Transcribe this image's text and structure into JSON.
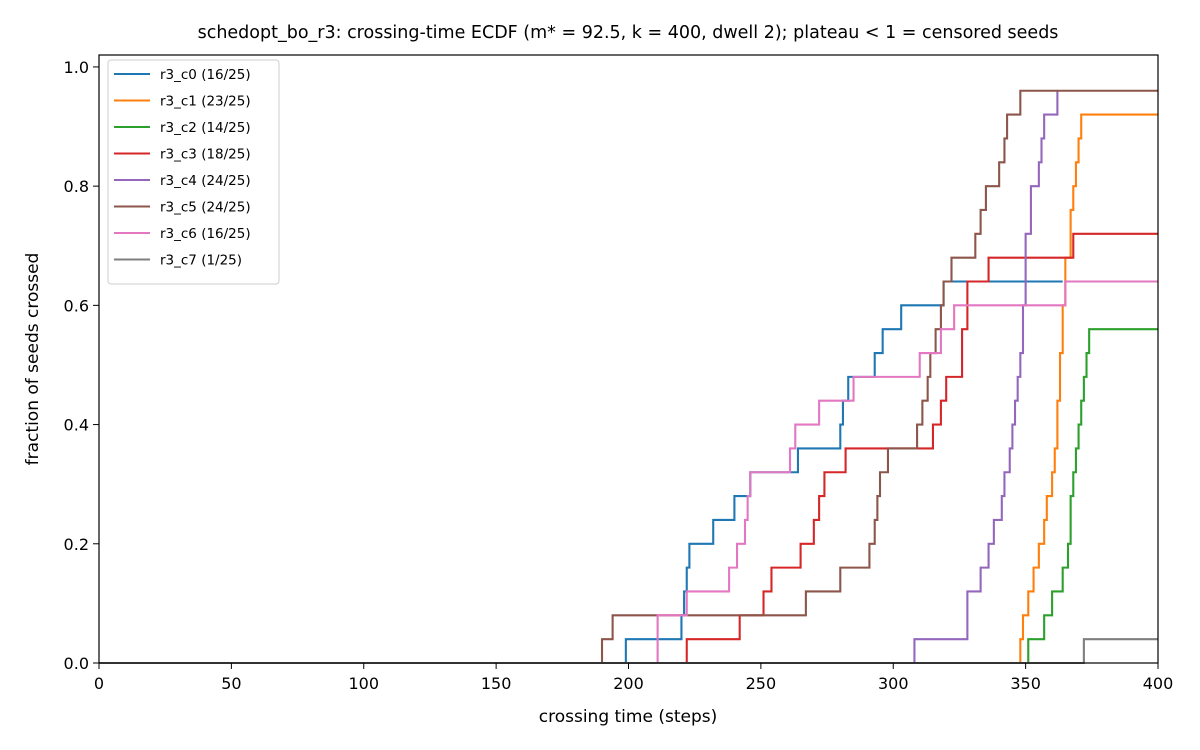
{
  "chart_data": {
    "type": "line",
    "title": "schedopt_bo_r3: crossing-time ECDF (m* = 92.5, k = 400, dwell 2); plateau < 1 = censored seeds",
    "xlabel": "crossing time (steps)",
    "ylabel": "fraction of seeds crossed",
    "xlim": [
      0,
      400
    ],
    "ylim": [
      0,
      1.02
    ],
    "xticks": [
      0,
      50,
      100,
      150,
      200,
      250,
      300,
      350,
      400
    ],
    "xtick_labels": [
      "0",
      "50",
      "100",
      "150",
      "200",
      "250",
      "300",
      "350",
      "400"
    ],
    "yticks": [
      0,
      0.2,
      0.4,
      0.6,
      0.8,
      1.0
    ],
    "ytick_labels": [
      "0.0",
      "0.2",
      "0.4",
      "0.6",
      "0.8",
      "1.0"
    ],
    "grid": false,
    "legend_position": "top-left",
    "step": "post",
    "series": [
      {
        "name": "r3_c0 (16/25)",
        "color": "#1f77b4",
        "x": [
          0,
          199,
          220,
          221,
          222,
          223,
          232,
          240,
          246,
          248,
          264,
          280,
          281,
          283,
          285,
          293,
          296,
          303,
          317,
          319,
          364
        ],
        "y": [
          0,
          0.04,
          0.08,
          0.12,
          0.16,
          0.2,
          0.24,
          0.28,
          0.32,
          0.32,
          0.36,
          0.4,
          0.44,
          0.48,
          0.48,
          0.52,
          0.56,
          0.6,
          0.6,
          0.64,
          0.64
        ]
      },
      {
        "name": "r3_c1 (23/25)",
        "color": "#ff7f0e",
        "x": [
          0,
          348,
          349,
          351,
          353,
          355,
          357,
          358,
          360,
          361,
          362,
          363,
          364,
          365,
          367,
          368,
          369,
          370,
          371,
          400
        ],
        "y": [
          0,
          0.04,
          0.08,
          0.12,
          0.16,
          0.2,
          0.24,
          0.28,
          0.32,
          0.36,
          0.44,
          0.52,
          0.6,
          0.68,
          0.76,
          0.8,
          0.84,
          0.88,
          0.92,
          0.92
        ]
      },
      {
        "name": "r3_c2 (14/25)",
        "color": "#2ca02c",
        "x": [
          0,
          351,
          357,
          360,
          364,
          366,
          367,
          368,
          369,
          370,
          371,
          372,
          373,
          374,
          400
        ],
        "y": [
          0,
          0.04,
          0.08,
          0.12,
          0.16,
          0.2,
          0.28,
          0.32,
          0.36,
          0.4,
          0.44,
          0.48,
          0.52,
          0.56,
          0.56
        ]
      },
      {
        "name": "r3_c3 (18/25)",
        "color": "#d62728",
        "x": [
          0,
          222,
          242,
          251,
          254,
          265,
          270,
          272,
          274,
          280,
          282,
          286,
          302,
          315,
          318,
          320,
          326,
          328,
          336,
          349,
          368,
          400
        ],
        "y": [
          0,
          0.04,
          0.08,
          0.12,
          0.16,
          0.2,
          0.24,
          0.28,
          0.32,
          0.32,
          0.36,
          0.36,
          0.36,
          0.4,
          0.44,
          0.48,
          0.56,
          0.64,
          0.68,
          0.68,
          0.72,
          0.72
        ]
      },
      {
        "name": "r3_c4 (24/25)",
        "color": "#9467bd",
        "x": [
          0,
          308,
          328,
          333,
          336,
          338,
          341,
          342,
          344,
          345,
          346,
          347,
          348,
          349,
          350,
          352,
          355,
          356,
          357,
          362
        ],
        "y": [
          0,
          0.04,
          0.12,
          0.16,
          0.2,
          0.24,
          0.28,
          0.32,
          0.36,
          0.4,
          0.44,
          0.48,
          0.52,
          0.6,
          0.72,
          0.8,
          0.84,
          0.88,
          0.92,
          0.96
        ]
      },
      {
        "name": "r3_c5 (24/25)",
        "color": "#8c564b",
        "x": [
          0,
          190,
          194,
          267,
          280,
          291,
          293,
          294,
          295,
          298,
          309,
          311,
          313,
          314,
          316,
          318,
          319,
          320,
          322,
          331,
          333,
          335,
          340,
          342,
          343,
          346,
          348,
          400
        ],
        "y": [
          0,
          0.04,
          0.08,
          0.12,
          0.16,
          0.2,
          0.24,
          0.28,
          0.32,
          0.36,
          0.4,
          0.44,
          0.48,
          0.52,
          0.56,
          0.6,
          0.64,
          0.64,
          0.68,
          0.72,
          0.76,
          0.8,
          0.84,
          0.88,
          0.92,
          0.92,
          0.96,
          0.96
        ]
      },
      {
        "name": "r3_c6 (16/25)",
        "color": "#e377c2",
        "x": [
          0,
          211,
          222,
          223,
          238,
          241,
          244,
          245,
          246,
          261,
          263,
          272,
          284,
          285,
          310,
          312,
          318,
          323,
          365,
          400
        ],
        "y": [
          0,
          0.08,
          0.12,
          0.12,
          0.16,
          0.2,
          0.24,
          0.28,
          0.32,
          0.36,
          0.4,
          0.44,
          0.44,
          0.48,
          0.52,
          0.52,
          0.56,
          0.6,
          0.64,
          0.64
        ]
      },
      {
        "name": "r3_c7 (1/25)",
        "color": "#7f7f7f",
        "x": [
          0,
          372,
          400
        ],
        "y": [
          0,
          0.04,
          0.04
        ]
      }
    ]
  }
}
